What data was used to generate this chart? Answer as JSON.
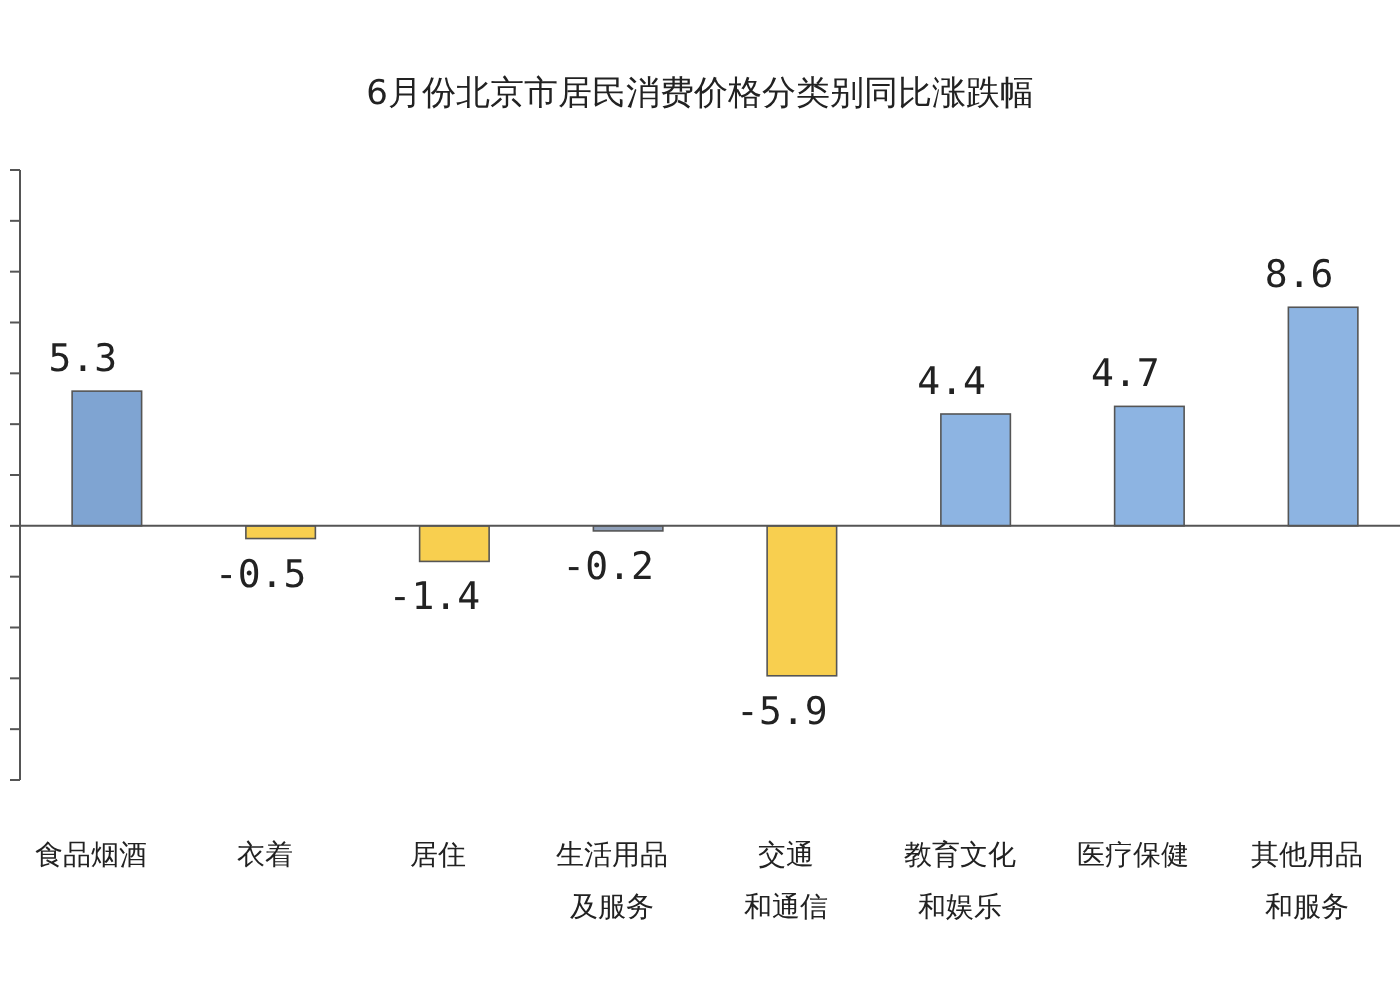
{
  "chart_data": {
    "type": "bar",
    "title": "6月份北京市居民消费价格分类别同比涨跌幅",
    "categories": [
      "食品烟酒",
      "衣着",
      "居住",
      "生活用品及服务",
      "交通和通信",
      "教育文化和娱乐",
      "医疗保健",
      "其他用品和服务"
    ],
    "values": [
      5.3,
      -0.5,
      -1.4,
      -0.2,
      -5.9,
      4.4,
      4.7,
      8.6
    ],
    "colors": [
      "#7fa4d2",
      "#f8cf4f",
      "#f8cf4f",
      "#8f9fb8",
      "#f8cf4f",
      "#8db4e2",
      "#8db4e2",
      "#8db4e2"
    ],
    "data_labels": true,
    "ylim": [
      -10,
      14
    ],
    "yticks": [
      {
        "value": -10,
        "label": null
      },
      {
        "value": -8,
        "label": null
      },
      {
        "value": -6,
        "label": null
      },
      {
        "value": -4,
        "label": null
      },
      {
        "value": -2,
        "label": null
      },
      {
        "value": 0,
        "label": null
      },
      {
        "value": 2,
        "label": null
      },
      {
        "value": 4,
        "label": null
      },
      {
        "value": 6,
        "label": null
      },
      {
        "value": 8,
        "label": null
      },
      {
        "value": 10,
        "label": null
      },
      {
        "value": 12,
        "label": null
      },
      {
        "value": 14,
        "label": null
      }
    ],
    "grid": false
  }
}
